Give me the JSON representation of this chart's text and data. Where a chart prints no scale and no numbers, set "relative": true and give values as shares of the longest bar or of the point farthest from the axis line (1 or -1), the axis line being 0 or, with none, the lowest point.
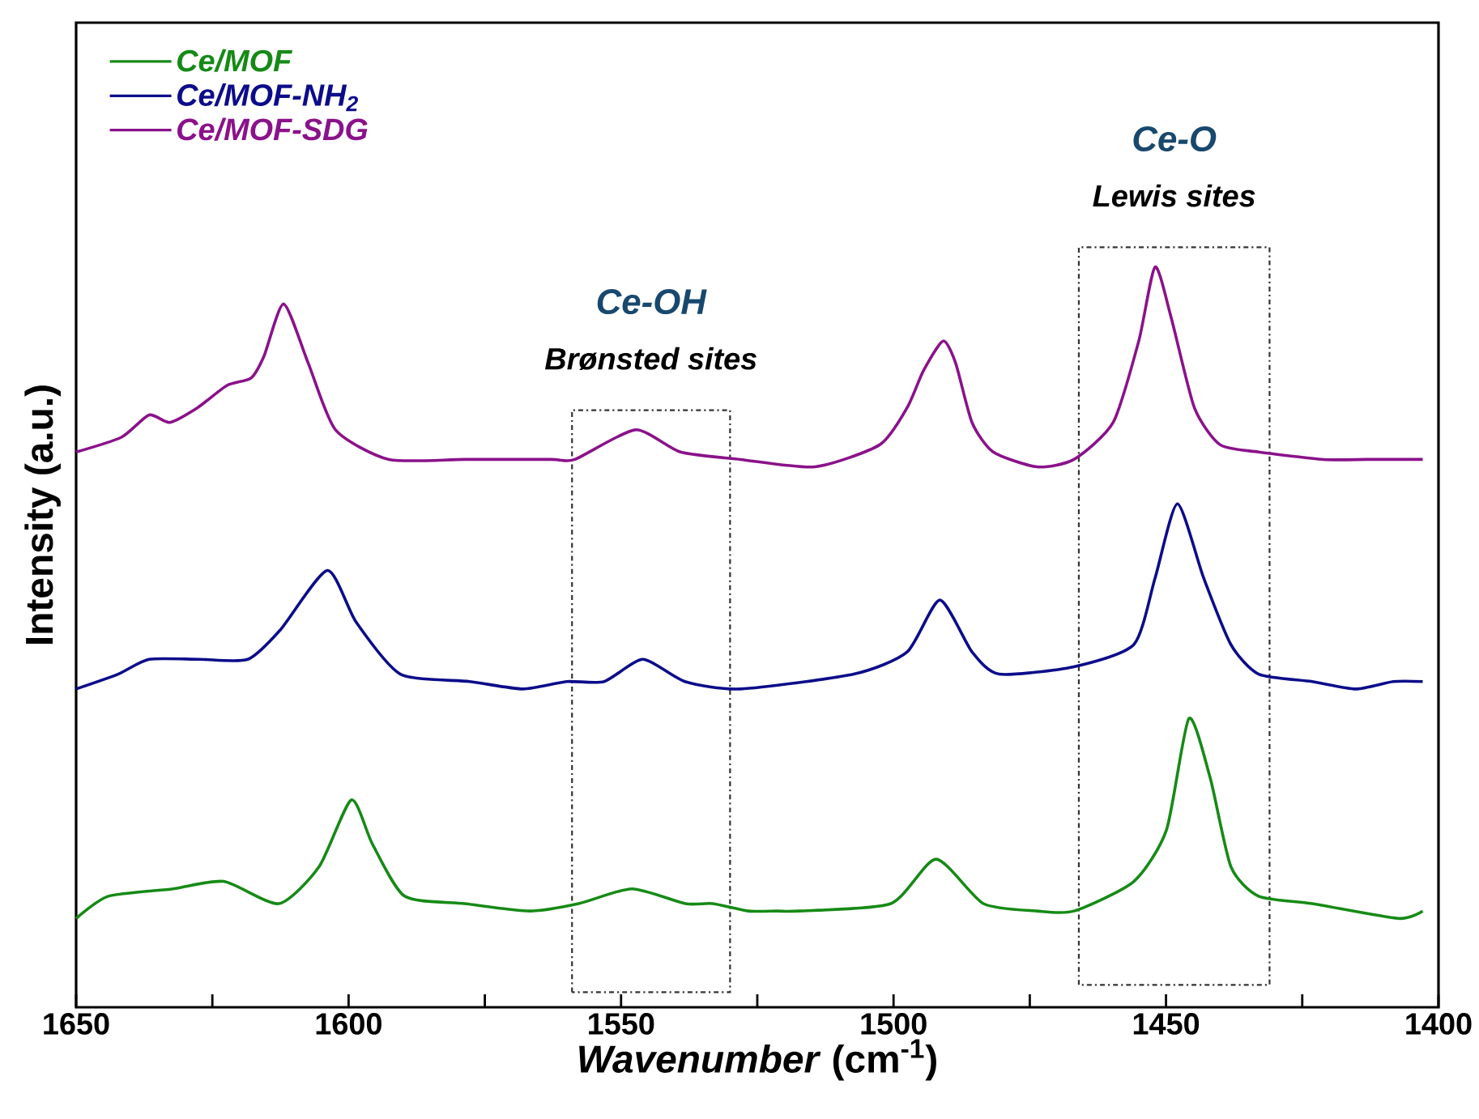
{
  "chart_data": {
    "type": "line",
    "relative": true,
    "xlabel": "*Wavenumber* (cm$^{-1}$)",
    "ylabel": "Intensity (a.u.)",
    "xlim": [
      1650,
      1400
    ],
    "xticks": [
      1650,
      {
        "value": 1625,
        "label": null
      },
      1600,
      {
        "value": 1575,
        "label": null
      },
      1550,
      {
        "value": 1525,
        "label": null
      },
      1500,
      {
        "value": 1475,
        "label": null
      },
      1450,
      {
        "value": 1425,
        "label": null
      },
      1400
    ],
    "legend": "top left",
    "grid": false,
    "marker": "none",
    "line_style": "solid",
    "tick_labels": "x",
    "bands": [
      {
        "axis": "x",
        "from": 1559,
        "to": 1530
      },
      {
        "axis": "x",
        "from": 1466,
        "to": 1431
      }
    ],
    "annotations": [
      "Ce-OH",
      "Brønsted sites",
      "Ce-O",
      "Lewis sites"
    ],
    "series": [
      {
        "name": "Ce/MOF",
        "color": "#168a16",
        "x": [
          1650,
          1644.1,
          1632.2,
          1622.9,
          1612.8,
          1605.4,
          1599.5,
          1595.6,
          1589.7,
          1578.7,
          1566.8,
          1557.8,
          1548.0,
          1538.2,
          1533.2,
          1526.6,
          1521.3,
          1517.4,
          1500.5,
          1492.2,
          1483.5,
          1473.7,
          1466.9,
          1455.9,
          1449.9,
          1445.8,
          1441.9,
          1438.1,
          1433.0,
          1423.2,
          1407.4,
          1402.9
        ],
        "values": [
          0.12,
          0.15,
          0.16,
          0.17,
          0.14,
          0.19,
          0.28,
          0.22,
          0.15,
          0.14,
          0.13,
          0.14,
          0.16,
          0.14,
          0.14,
          0.13,
          0.13,
          0.13,
          0.14,
          0.2,
          0.14,
          0.13,
          0.13,
          0.17,
          0.24,
          0.39,
          0.31,
          0.19,
          0.15,
          0.14,
          0.12,
          0.13
        ]
      },
      {
        "name": "Ce/MOF-NH$_{2}$",
        "color": "#0c0c8a",
        "x": [
          1650,
          1642.3,
          1636.6,
          1627.4,
          1618.5,
          1612.5,
          1603.9,
          1598.6,
          1590.5,
          1577.8,
          1568.0,
          1560.0,
          1553.1,
          1546.0,
          1538.3,
          1528.1,
          1507.3,
          1497.5,
          1491.5,
          1485.6,
          1480.6,
          1466.9,
          1455.9,
          1452.0,
          1447.9,
          1443.1,
          1438.1,
          1433.0,
          1423.2,
          1415.2,
          1408.3,
          1402.9
        ],
        "values": [
          0.43,
          0.45,
          0.47,
          0.47,
          0.47,
          0.51,
          0.59,
          0.52,
          0.45,
          0.44,
          0.43,
          0.44,
          0.44,
          0.47,
          0.44,
          0.43,
          0.45,
          0.48,
          0.55,
          0.48,
          0.45,
          0.46,
          0.49,
          0.58,
          0.68,
          0.58,
          0.49,
          0.45,
          0.44,
          0.43,
          0.44,
          0.44
        ]
      },
      {
        "name": "Ce/MOF-SDG",
        "color": "#8a128a",
        "x": [
          1650,
          1641.7,
          1636.6,
          1632.8,
          1627.7,
          1622.3,
          1617.9,
          1615.5,
          1611.9,
          1607.4,
          1602.4,
          1592.6,
          1578.7,
          1562.9,
          1558.5,
          1547.4,
          1539.1,
          1528.1,
          1514.4,
          1502.5,
          1497.5,
          1494.5,
          1490.9,
          1488.6,
          1485.6,
          1481.7,
          1473.7,
          1466.9,
          1459.7,
          1455.0,
          1452.0,
          1449.0,
          1444.8,
          1440.1,
          1433.0,
          1421.1,
          1413.3,
          1408.3,
          1402.9
        ],
        "values": [
          0.75,
          0.77,
          0.8,
          0.79,
          0.81,
          0.84,
          0.85,
          0.88,
          0.95,
          0.87,
          0.78,
          0.74,
          0.74,
          0.74,
          0.74,
          0.78,
          0.75,
          0.74,
          0.73,
          0.76,
          0.81,
          0.86,
          0.9,
          0.87,
          0.79,
          0.75,
          0.73,
          0.74,
          0.79,
          0.9,
          1.0,
          0.93,
          0.81,
          0.76,
          0.75,
          0.74,
          0.74,
          0.74,
          0.74
        ]
      }
    ]
  }
}
